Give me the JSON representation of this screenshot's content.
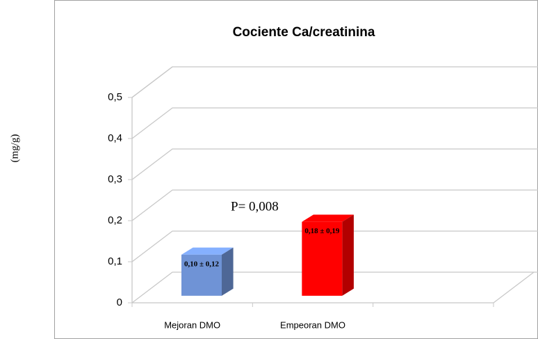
{
  "chart_data": {
    "type": "bar3d",
    "title": "Cociente Ca/creatinina",
    "ylabel": "(mg/g)",
    "annotation": "P= 0,008",
    "categories": [
      "Mejoran DMO",
      "Empeoran DMO",
      null
    ],
    "values": [
      0.1,
      0.18,
      null
    ],
    "value_labels": [
      "0,10 ± 0,12",
      "0,18 ± 0,19",
      null
    ],
    "colors": [
      "#6f93d6",
      "#ff0000",
      null
    ],
    "ylim": [
      0,
      0.5
    ],
    "yticks": [
      0,
      {
        "value": 0.1,
        "label": "0,1"
      },
      {
        "value": 0.2,
        "label": "0,2"
      },
      {
        "value": 0.3,
        "label": "0,3"
      },
      {
        "value": 0.4,
        "label": "0,4"
      },
      {
        "value": 0.5,
        "label": "0,5"
      }
    ],
    "grid": true
  }
}
